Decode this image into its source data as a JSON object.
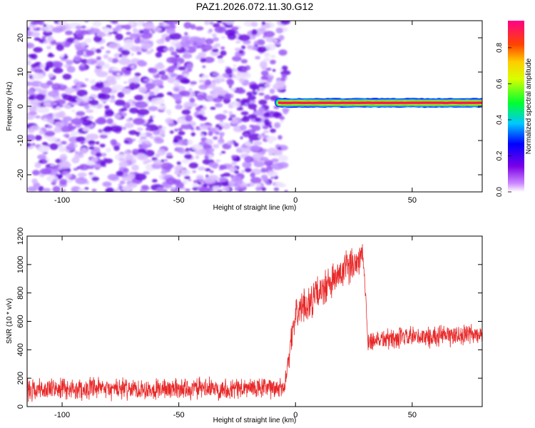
{
  "title": "PAZ1.2026.072.11.30.G12",
  "chart_data": [
    {
      "type": "heatmap",
      "name": "spectrogram",
      "xlabel": "Height of straight line (km)",
      "ylabel": "Frequency (Hz)",
      "xlim": [
        -115,
        80
      ],
      "ylim": [
        -25,
        25
      ],
      "xticks": [
        -100,
        -50,
        0,
        50
      ],
      "yticks": [
        -20,
        -10,
        0,
        10,
        20
      ],
      "xtick_labels": [
        "-100",
        "-50",
        "0",
        "50"
      ],
      "ytick_labels": [
        "-20",
        "-10",
        "0",
        "10",
        "20"
      ],
      "noise_region_x": [
        -115,
        -7
      ],
      "signal_start_x": -7,
      "signal_frequency_hz": 1,
      "signal_band_amplitude": 0.9,
      "noise_amplitude_range": [
        0.0,
        0.35
      ],
      "colorbar": {
        "label": "Normalized spectral amplitude",
        "range": [
          0.0,
          0.95
        ],
        "ticks": [
          0.0,
          0.2,
          0.4,
          0.6,
          0.8
        ],
        "tick_labels": [
          "0.0",
          "0.2",
          "0.4",
          "0.6",
          "0.8"
        ]
      }
    },
    {
      "type": "line",
      "name": "snr",
      "xlabel": "Height of straight line (km)",
      "ylabel": "SNR (10 * v/v)",
      "xlim": [
        -115,
        80
      ],
      "ylim": [
        0,
        1200
      ],
      "xticks": [
        -100,
        -50,
        0,
        50
      ],
      "yticks": [
        0,
        200,
        400,
        600,
        800,
        1000,
        1200
      ],
      "xtick_labels": [
        "-100",
        "-50",
        "0",
        "50"
      ],
      "ytick_labels": [
        "0",
        "200",
        "400",
        "600",
        "800",
        "1000",
        "1200"
      ],
      "color": "#e82828",
      "series": [
        {
          "name": "SNR",
          "segments": [
            {
              "x": [
                -115,
                -5
              ],
              "mean": [
                120,
                130
              ],
              "spread": 90
            },
            {
              "x": [
                -5,
                0
              ],
              "mean": [
                130,
                650
              ],
              "spread": 110
            },
            {
              "x": [
                0,
                29
              ],
              "mean": [
                650,
                1070
              ],
              "spread": 150
            },
            {
              "x": [
                29,
                31
              ],
              "mean": [
                1070,
                470
              ],
              "spread": 90
            },
            {
              "x": [
                31,
                80
              ],
              "mean": [
                470,
                510
              ],
              "spread": 90
            }
          ]
        }
      ]
    }
  ]
}
